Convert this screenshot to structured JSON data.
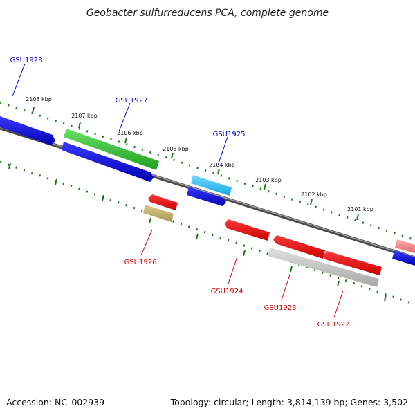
{
  "title": "Geobacter sulfurreducens PCA, complete genome",
  "footer": {
    "accession": "Accession: NC_002939",
    "summary": "Topology: circular; Length: 3,814,139 bp; Genes: 3,502"
  },
  "colors": {
    "backbone": "#6e6e6e",
    "tick": "#1a7a1a",
    "forward_label": "#0000c8",
    "reverse_label": "#d00000"
  },
  "scale_labels": [
    "2108 kbp",
    "2107 kbp",
    "2106 kbp",
    "2105 kbp",
    "2104 kbp",
    "2103 kbp",
    "2102 kbp",
    "2101 kbp"
  ],
  "genes": [
    {
      "name": "GSU1928",
      "strand": "forward"
    },
    {
      "name": "GSU1927",
      "strand": "forward"
    },
    {
      "name": "GSU1925",
      "strand": "forward"
    },
    {
      "name": "GSU1926",
      "strand": "reverse"
    },
    {
      "name": "GSU1924",
      "strand": "reverse"
    },
    {
      "name": "GSU1923",
      "strand": "reverse"
    },
    {
      "name": "GSU1922",
      "strand": "reverse"
    }
  ]
}
